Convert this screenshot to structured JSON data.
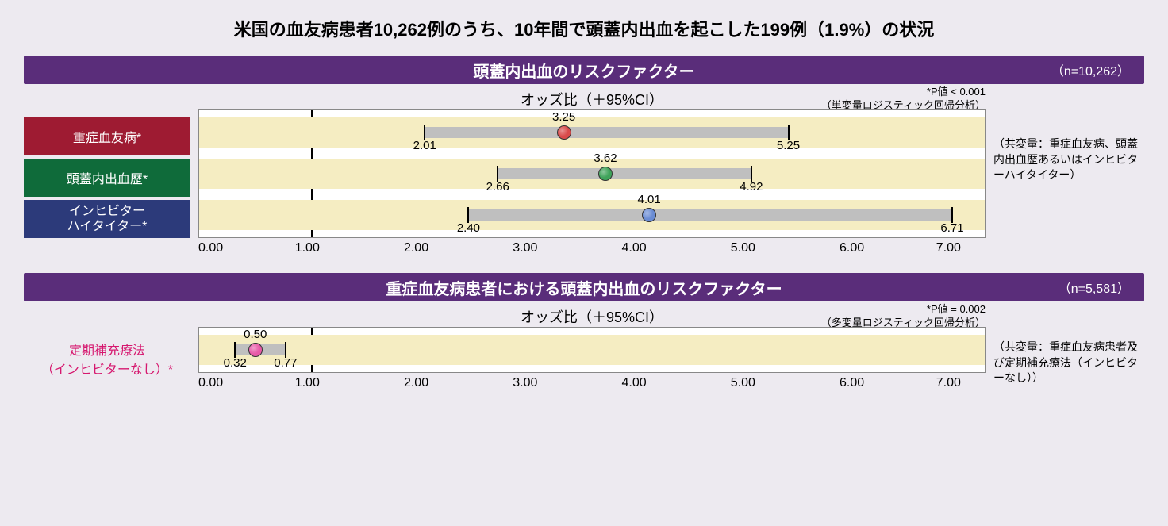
{
  "main_title": "米国の血友病患者10,262例のうち、10年間で頭蓋内出血を起こした199例（1.9%）の状況",
  "chart1": {
    "type": "forest-plot",
    "section_title": "頭蓋内出血のリスクファクター",
    "n_label": "（n=10,262）",
    "axis_title": "オッズ比（＋95%CI）",
    "pvalue_line1": "*P値 < 0.001",
    "pvalue_line2": "（単変量ロジスティック回帰分析）",
    "side_note": "（共変量：重症血友病、頭蓋内出血歴あるいはインヒビターハイタイター）",
    "xlim": [
      0,
      7
    ],
    "ticks": [
      "0.00",
      "1.00",
      "2.00",
      "3.00",
      "4.00",
      "5.00",
      "6.00",
      "7.00"
    ],
    "ref_line": 1.0,
    "band_color": "#f5edc2",
    "ci_color": "#bfbfbf",
    "series": [
      {
        "label": "重症血友病*",
        "label_bg": "#9e1b32",
        "low": 2.01,
        "point": 3.25,
        "high": 5.25,
        "dot_color": "#d94a4a",
        "low_txt": "2.01",
        "pt_txt": "3.25",
        "high_txt": "5.25"
      },
      {
        "label": "頭蓋内出血歴*",
        "label_bg": "#0f6b3a",
        "low": 2.66,
        "point": 3.62,
        "high": 4.92,
        "dot_color": "#3fa35a",
        "low_txt": "2.66",
        "pt_txt": "3.62",
        "high_txt": "4.92"
      },
      {
        "label": "インヒビター\nハイタイター*",
        "label_bg": "#2c3a7a",
        "low": 2.4,
        "point": 4.01,
        "high": 6.71,
        "dot_color": "#6a8cd4",
        "low_txt": "2.40",
        "pt_txt": "4.01",
        "high_txt": "6.71"
      }
    ]
  },
  "chart2": {
    "type": "forest-plot",
    "section_title": "重症血友病患者における頭蓋内出血のリスクファクター",
    "n_label": "（n=5,581）",
    "axis_title": "オッズ比（＋95%CI）",
    "pvalue_line1": "*P値 = 0.002",
    "pvalue_line2": "（多変量ロジスティック回帰分析）",
    "side_note": "（共変量：重症血友病患者及び定期補充療法（インヒビターなし））",
    "pink_label_line1": "定期補充療法",
    "pink_label_line2": "（インヒビターなし）*",
    "xlim": [
      0,
      7
    ],
    "ticks": [
      "0.00",
      "1.00",
      "2.00",
      "3.00",
      "4.00",
      "5.00",
      "6.00",
      "7.00"
    ],
    "ref_line": 1.0,
    "band_color": "#f5edc2",
    "ci_color": "#bfbfbf",
    "series": [
      {
        "low": 0.32,
        "point": 0.5,
        "high": 0.77,
        "dot_color": "#e85aa8",
        "low_txt": "0.32",
        "pt_txt": "0.50",
        "high_txt": "0.77"
      }
    ]
  }
}
